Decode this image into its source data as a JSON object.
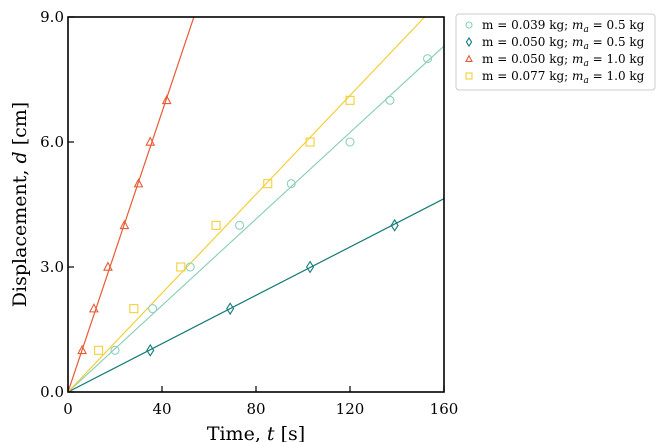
{
  "chart_data": {
    "type": "scatter",
    "xlabel_main": "Time, ",
    "xlabel_var": "t",
    "xlabel_unit": " [s]",
    "ylabel_main": "Displacement, ",
    "ylabel_var": "d",
    "ylabel_unit": " [cm]",
    "xlim": [
      0,
      160
    ],
    "ylim": [
      0,
      9
    ],
    "xticks": [
      0,
      40,
      80,
      120,
      160
    ],
    "xtick_labels": [
      "0",
      "40",
      "80",
      "120",
      "160"
    ],
    "yticks": [
      0,
      3,
      6,
      9
    ],
    "ytick_labels": [
      "0.0",
      "3.0",
      "6.0",
      "9.0"
    ],
    "grid": false,
    "legend_position": "outside-top-right",
    "series": [
      {
        "name": "m = 0.039 kg; m_a = 0.5 kg",
        "label_parts": [
          "m = 0.039 kg; ",
          "m",
          "a",
          " = 0.5 kg"
        ],
        "marker": "circle",
        "color": "#8fd0b9",
        "x": [
          20,
          36,
          52,
          73,
          95,
          120,
          137,
          153
        ],
        "y": [
          1,
          2,
          3,
          4,
          5,
          6,
          7,
          8
        ],
        "fit_slope": 0.0519
      },
      {
        "name": "m = 0.050 kg; m_a = 0.5 kg",
        "label_parts": [
          "m = 0.050 kg; ",
          "m",
          "a",
          " = 0.5 kg"
        ],
        "marker": "diamond",
        "color": "#137a78",
        "x": [
          35,
          69,
          103,
          139
        ],
        "y": [
          1,
          2,
          3,
          4
        ],
        "fit_slope": 0.029
      },
      {
        "name": "m = 0.050 kg; m_a = 1.0 kg",
        "label_parts": [
          "m = 0.050 kg; ",
          "m",
          "a",
          " = 1.0 kg"
        ],
        "marker": "triangle",
        "color": "#e85a35",
        "x": [
          6,
          11,
          17,
          24,
          30,
          35,
          42
        ],
        "y": [
          1,
          2,
          3,
          4,
          5,
          6,
          7
        ],
        "fit_slope": 0.168
      },
      {
        "name": "m = 0.077 kg; m_a = 1.0 kg",
        "label_parts": [
          "m = 0.077 kg; ",
          "m",
          "a",
          " = 1.0 kg"
        ],
        "marker": "square",
        "color": "#f4cf3a",
        "x": [
          13,
          28,
          48,
          63,
          85,
          103,
          120
        ],
        "y": [
          1,
          2,
          3,
          4,
          5,
          6,
          7
        ],
        "fit_slope": 0.0593
      }
    ]
  }
}
